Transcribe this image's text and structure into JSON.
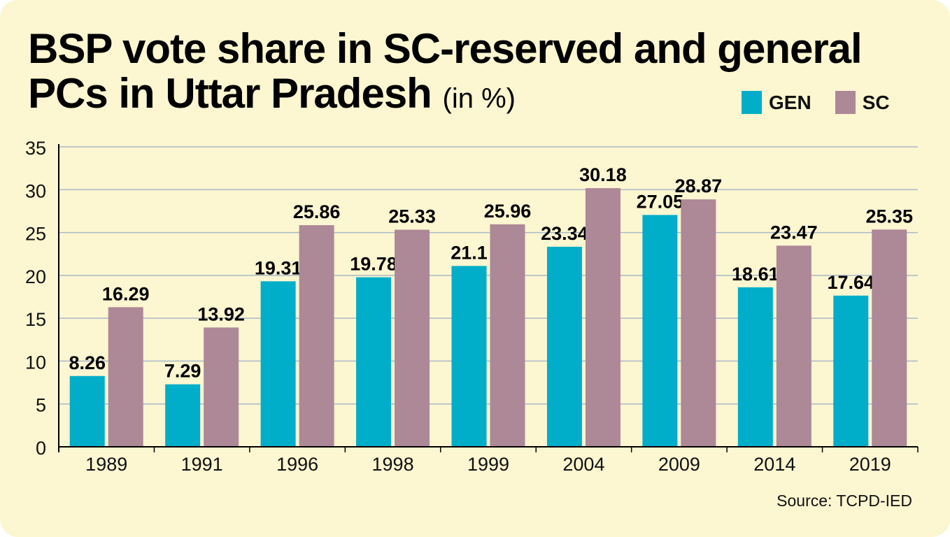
{
  "title_main": "BSP vote share in SC-reserved and general PCs in Uttar Pradesh",
  "title_unit": "(in %)",
  "source": "Source: TCPD-IED",
  "colors": {
    "GEN": "#00aec9",
    "SC": "#ad8896",
    "background": "#fcf6d1",
    "grid": "#aab9c6"
  },
  "legend": [
    {
      "name": "GEN",
      "color": "#00aec9"
    },
    {
      "name": "SC",
      "color": "#ad8896"
    }
  ],
  "chart_data": {
    "type": "bar",
    "categories": [
      "1989",
      "1991",
      "1996",
      "1998",
      "1999",
      "2004",
      "2009",
      "2014",
      "2019"
    ],
    "series": [
      {
        "name": "GEN",
        "values": [
          8.26,
          7.29,
          19.31,
          19.78,
          21.1,
          23.34,
          27.05,
          18.61,
          17.64
        ]
      },
      {
        "name": "SC",
        "values": [
          16.29,
          13.92,
          25.86,
          25.33,
          25.96,
          30.18,
          28.87,
          23.47,
          25.35
        ]
      }
    ],
    "data_labels": [
      [
        "8.26",
        "7.29",
        "19.31",
        "19.78",
        "21.1",
        "23.34",
        "27.05",
        "18.61",
        "17.64"
      ],
      [
        "16.29",
        "13.92",
        "25.86",
        "25.33",
        "25.96",
        "30.18",
        "28.87",
        "23.47",
        "25.35"
      ]
    ],
    "ylim": [
      0,
      35
    ],
    "yticks": [
      "0",
      "5",
      "10",
      "15",
      "20",
      "25",
      "30",
      "35"
    ],
    "xlabel": "",
    "ylabel": "",
    "grid": true,
    "legend_position": "top-right"
  }
}
